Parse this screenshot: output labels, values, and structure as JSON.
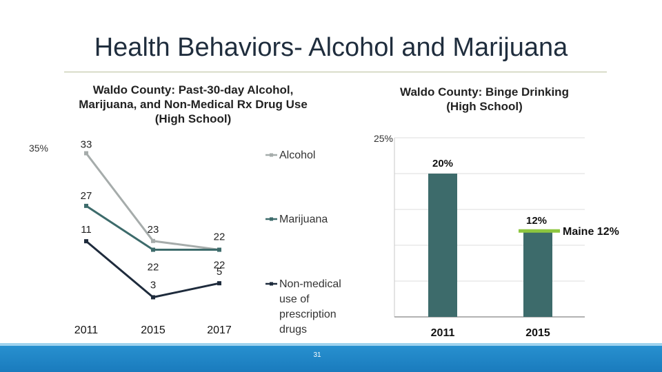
{
  "slide": {
    "title": "Health Behaviors- Alcohol and Marijuana",
    "page_number": "31"
  },
  "chart_data": [
    {
      "type": "line",
      "title": "Waldo County: Past-30-day Alcohol, Marijuana, and Non-Medical Rx Drug Use (High School)",
      "title_lines": [
        "Waldo County: Past-30-day Alcohol,",
        "Marijuana, and Non-Medical Rx Drug Use",
        "(High School)"
      ],
      "y_max_label": "35%",
      "x": [
        "2011",
        "2015",
        "2017"
      ],
      "series": [
        {
          "name": "Alcohol",
          "values": [
            33,
            23,
            22
          ],
          "labels": [
            "33",
            "23",
            "22"
          ],
          "color": "#a6acab",
          "legend_lines": [
            "Alcohol"
          ]
        },
        {
          "name": "Marijuana",
          "values": [
            27,
            22,
            22
          ],
          "labels": [
            "27",
            "22",
            "22"
          ],
          "color": "#3d6b6b",
          "legend_lines": [
            "Marijuana"
          ]
        },
        {
          "name": "Non-medical use of prescription drugs",
          "values": [
            11,
            3,
            5
          ],
          "labels": [
            "11",
            "3",
            "5"
          ],
          "color": "#1e2b3c",
          "legend_lines": [
            "Non-medical",
            "use of",
            "prescription",
            "drugs"
          ]
        }
      ]
    },
    {
      "type": "bar",
      "title": "Waldo County: Binge Drinking (High School)",
      "title_lines": [
        "Waldo County: Binge Drinking",
        "(High School)"
      ],
      "y_max_label": "25%",
      "ylim": [
        0,
        25
      ],
      "categories": [
        "2011",
        "2015"
      ],
      "values": [
        20,
        12
      ],
      "value_labels": [
        "20%",
        "12%"
      ],
      "bar_color": "#3d6b6b",
      "reference": {
        "label": "Maine 12%",
        "value": 12,
        "color": "#8dc63f"
      }
    }
  ]
}
